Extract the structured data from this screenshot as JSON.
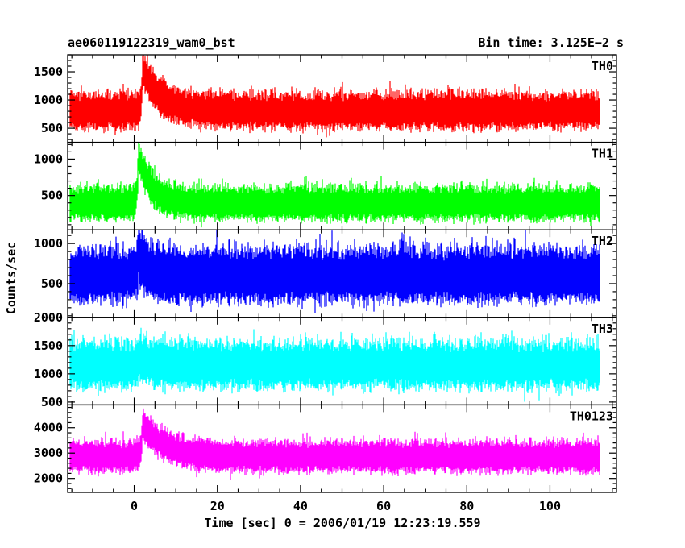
{
  "header": {
    "left_title": "ae060119122319_wam0_bst",
    "right_title": "Bin time: 3.125E−2 s"
  },
  "chart_data": {
    "type": "line",
    "xlabel": "Time [sec] 0 = 2006/01/19 12:23:19.559",
    "ylabel": "Counts/sec",
    "xlim": [
      -16,
      116
    ],
    "x_ticks": [
      0,
      20,
      40,
      60,
      80,
      100
    ],
    "x_tick_labels": [
      "0",
      "20",
      "40",
      "60",
      "80",
      "100"
    ],
    "data_x_range": [
      -15.5,
      112
    ],
    "bin_time_s": 0.03125,
    "panels": [
      {
        "name": "TH0",
        "color": "#ff0000",
        "ylim": [
          250,
          1800
        ],
        "y_ticks": [
          500,
          1000,
          1500
        ],
        "y_tick_labels": [
          "500",
          "1000",
          "1500"
        ],
        "baseline": 800,
        "noise_halfwidth": 330,
        "burst_peak_time": 2,
        "burst_amplitude": 750,
        "burst_decay_s": 4
      },
      {
        "name": "TH1",
        "color": "#00ff00",
        "ylim": [
          30,
          1230
        ],
        "y_ticks": [
          500,
          1000
        ],
        "y_tick_labels": [
          "500",
          "1000"
        ],
        "baseline": 390,
        "noise_halfwidth": 240,
        "burst_peak_time": 1,
        "burst_amplitude": 650,
        "burst_decay_s": 3
      },
      {
        "name": "TH2",
        "color": "#0000ff",
        "ylim": [
          80,
          1170
        ],
        "y_ticks": [
          500,
          1000
        ],
        "y_tick_labels": [
          "500",
          "1000"
        ],
        "baseline": 600,
        "noise_halfwidth": 350,
        "burst_peak_time": 1,
        "burst_amplitude": 250,
        "burst_decay_s": 2
      },
      {
        "name": "TH3",
        "color": "#00ffff",
        "ylim": [
          450,
          2000
        ],
        "y_ticks": [
          500,
          1000,
          1500,
          2000
        ],
        "y_tick_labels": [
          "500",
          "1000",
          "1500",
          "2000"
        ],
        "baseline": 1150,
        "noise_halfwidth": 430,
        "burst_peak_time": 1,
        "burst_amplitude": 150,
        "burst_decay_s": 2
      },
      {
        "name": "TH0123",
        "color": "#ff00ff",
        "ylim": [
          1450,
          4900
        ],
        "y_ticks": [
          2000,
          3000,
          4000
        ],
        "y_tick_labels": [
          "2000",
          "3000",
          "4000"
        ],
        "baseline": 2850,
        "noise_halfwidth": 650,
        "burst_peak_time": 2,
        "burst_amplitude": 1300,
        "burst_decay_s": 5
      }
    ]
  }
}
